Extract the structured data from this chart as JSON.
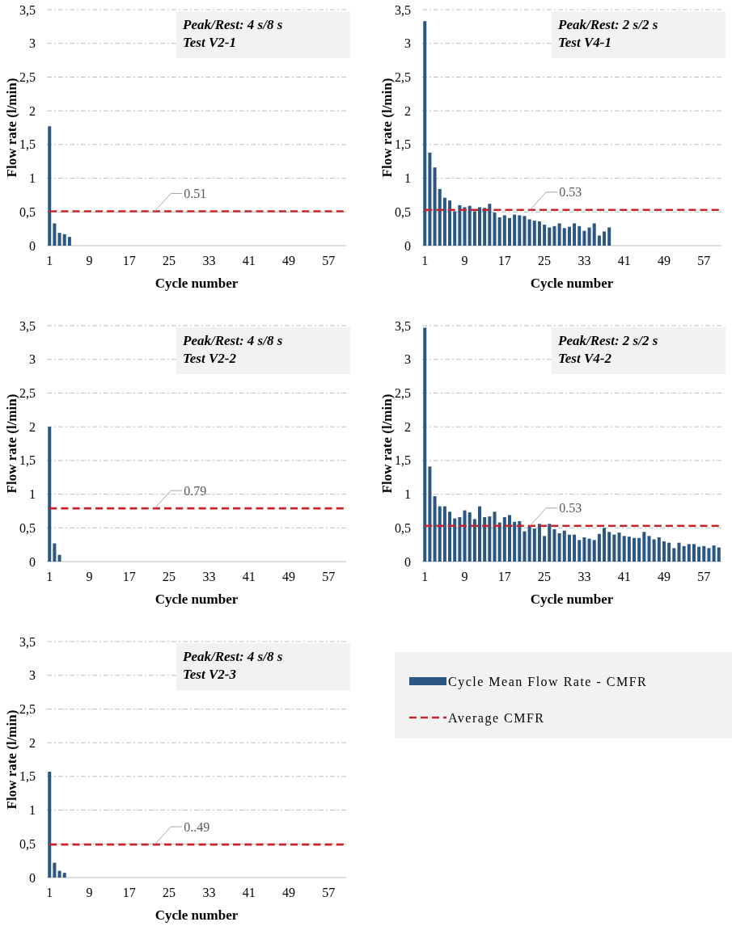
{
  "chart_data": [
    {
      "type": "bar",
      "xlabel": "Cycle number",
      "ylabel": "Flow rate (l/min)",
      "categories": [
        "1",
        null,
        null,
        null,
        null,
        null,
        null,
        null,
        "9",
        null,
        null,
        null,
        null,
        null,
        null,
        null,
        "17",
        null,
        null,
        null,
        null,
        null,
        null,
        null,
        "25",
        null,
        null,
        null,
        null,
        null,
        null,
        null,
        "33",
        null,
        null,
        null,
        null,
        null,
        null,
        null,
        "41",
        null,
        null,
        null,
        null,
        null,
        null,
        null,
        "49",
        null,
        null,
        null,
        null,
        null,
        null,
        null,
        "57",
        null,
        null,
        null
      ],
      "series": [
        {
          "type": "bar",
          "color": "#2a5783",
          "values": [
            1.77,
            0.33,
            0.19,
            0.17,
            0.13,
            null,
            null,
            null,
            null,
            null,
            null,
            null,
            null,
            null,
            null,
            null,
            null,
            null,
            null,
            null,
            null,
            null,
            null,
            null,
            null,
            null,
            null,
            null,
            null,
            null,
            null,
            null,
            null,
            null,
            null,
            null,
            null,
            null,
            null,
            null,
            null,
            null,
            null,
            null,
            null,
            null,
            null,
            null,
            null,
            null,
            null,
            null,
            null,
            null,
            null,
            null,
            null,
            null,
            null,
            null
          ]
        },
        {
          "type": "line",
          "color": "#c8242b",
          "line_style": "dashed",
          "values": [
            0.51,
            0.51,
            0.51,
            0.51,
            0.51,
            0.51,
            0.51,
            0.51,
            0.51,
            0.51,
            0.51,
            0.51,
            0.51,
            0.51,
            0.51,
            0.51,
            0.51,
            0.51,
            0.51,
            0.51,
            0.51,
            0.51,
            0.51,
            0.51,
            0.51,
            0.51,
            0.51,
            0.51,
            0.51,
            0.51,
            0.51,
            0.51,
            0.51,
            0.51,
            0.51,
            0.51,
            0.51,
            0.51,
            0.51,
            0.51,
            0.51,
            0.51,
            0.51,
            0.51,
            0.51,
            0.51,
            0.51,
            0.51,
            0.51,
            0.51,
            0.51,
            0.51,
            0.51,
            0.51,
            0.51,
            0.51,
            0.51,
            0.51,
            0.51,
            0.51
          ]
        }
      ],
      "ylim": [
        0,
        3.5
      ],
      "yticks": [
        0,
        {
          "value": 0.5,
          "label": "0,5"
        },
        1,
        {
          "value": 1.5,
          "label": "1,5"
        },
        2,
        {
          "value": 2.5,
          "label": "2,5"
        },
        3,
        {
          "value": 3.5,
          "label": "3,5"
        }
      ],
      "grid": "y",
      "legend": false,
      "annotations": [
        "Peak/Rest: 4 s/8 s",
        "Test V2-1",
        {
          "text": "0.51",
          "y": 0.51
        }
      ]
    },
    {
      "type": "bar",
      "xlabel": "Cycle number",
      "ylabel": "Flow rate (l/min)",
      "categories": [
        "1",
        null,
        null,
        null,
        null,
        null,
        null,
        null,
        "9",
        null,
        null,
        null,
        null,
        null,
        null,
        null,
        "17",
        null,
        null,
        null,
        null,
        null,
        null,
        null,
        "25",
        null,
        null,
        null,
        null,
        null,
        null,
        null,
        "33",
        null,
        null,
        null,
        null,
        null,
        null,
        null,
        "41",
        null,
        null,
        null,
        null,
        null,
        null,
        null,
        "49",
        null,
        null,
        null,
        null,
        null,
        null,
        null,
        "57",
        null,
        null,
        null
      ],
      "series": [
        {
          "type": "bar",
          "color": "#2a5783",
          "values": [
            3.33,
            1.38,
            1.16,
            0.84,
            0.71,
            0.67,
            0.51,
            0.6,
            0.57,
            0.59,
            0.51,
            0.57,
            0.56,
            0.62,
            0.49,
            0.42,
            0.45,
            0.41,
            0.46,
            0.45,
            0.44,
            0.39,
            0.37,
            0.36,
            0.31,
            0.27,
            0.29,
            0.33,
            0.26,
            0.28,
            0.33,
            0.29,
            0.22,
            0.27,
            0.33,
            0.15,
            0.21,
            0.27,
            null,
            null,
            null,
            null,
            null,
            null,
            null,
            null,
            null,
            null,
            null,
            null,
            null,
            null,
            null,
            null,
            null,
            null,
            null,
            null,
            null,
            null
          ]
        },
        {
          "type": "line",
          "color": "#c8242b",
          "line_style": "dashed",
          "values": [
            0.53,
            0.53,
            0.53,
            0.53,
            0.53,
            0.53,
            0.53,
            0.53,
            0.53,
            0.53,
            0.53,
            0.53,
            0.53,
            0.53,
            0.53,
            0.53,
            0.53,
            0.53,
            0.53,
            0.53,
            0.53,
            0.53,
            0.53,
            0.53,
            0.53,
            0.53,
            0.53,
            0.53,
            0.53,
            0.53,
            0.53,
            0.53,
            0.53,
            0.53,
            0.53,
            0.53,
            0.53,
            0.53,
            0.53,
            0.53,
            0.53,
            0.53,
            0.53,
            0.53,
            0.53,
            0.53,
            0.53,
            0.53,
            0.53,
            0.53,
            0.53,
            0.53,
            0.53,
            0.53,
            0.53,
            0.53,
            0.53,
            0.53,
            0.53,
            0.53
          ]
        }
      ],
      "ylim": [
        0,
        3.5
      ],
      "yticks": [
        0,
        {
          "value": 0.5,
          "label": "0,5"
        },
        1,
        {
          "value": 1.5,
          "label": "1,5"
        },
        2,
        {
          "value": 2.5,
          "label": "2,5"
        },
        3,
        {
          "value": 3.5,
          "label": "3,5"
        }
      ],
      "grid": "y",
      "legend": false,
      "annotations": [
        "Peak/Rest: 2 s/2 s",
        "Test V4-1",
        {
          "text": "0.53",
          "y": 0.53
        }
      ]
    },
    {
      "type": "bar",
      "xlabel": "Cycle number",
      "ylabel": "Flow rate (l/min)",
      "categories": [
        "1",
        null,
        null,
        null,
        null,
        null,
        null,
        null,
        "9",
        null,
        null,
        null,
        null,
        null,
        null,
        null,
        "17",
        null,
        null,
        null,
        null,
        null,
        null,
        null,
        "25",
        null,
        null,
        null,
        null,
        null,
        null,
        null,
        "33",
        null,
        null,
        null,
        null,
        null,
        null,
        null,
        "41",
        null,
        null,
        null,
        null,
        null,
        null,
        null,
        "49",
        null,
        null,
        null,
        null,
        null,
        null,
        null,
        "57",
        null,
        null,
        null
      ],
      "series": [
        {
          "type": "bar",
          "color": "#2a5783",
          "values": [
            2.0,
            0.27,
            0.1,
            null,
            null,
            null,
            null,
            null,
            null,
            null,
            null,
            null,
            null,
            null,
            null,
            null,
            null,
            null,
            null,
            null,
            null,
            null,
            null,
            null,
            null,
            null,
            null,
            null,
            null,
            null,
            null,
            null,
            null,
            null,
            null,
            null,
            null,
            null,
            null,
            null,
            null,
            null,
            null,
            null,
            null,
            null,
            null,
            null,
            null,
            null,
            null,
            null,
            null,
            null,
            null,
            null,
            null,
            null,
            null,
            null
          ]
        },
        {
          "type": "line",
          "color": "#c8242b",
          "line_style": "dashed",
          "values": [
            0.79,
            0.79,
            0.79,
            0.79,
            0.79,
            0.79,
            0.79,
            0.79,
            0.79,
            0.79,
            0.79,
            0.79,
            0.79,
            0.79,
            0.79,
            0.79,
            0.79,
            0.79,
            0.79,
            0.79,
            0.79,
            0.79,
            0.79,
            0.79,
            0.79,
            0.79,
            0.79,
            0.79,
            0.79,
            0.79,
            0.79,
            0.79,
            0.79,
            0.79,
            0.79,
            0.79,
            0.79,
            0.79,
            0.79,
            0.79,
            0.79,
            0.79,
            0.79,
            0.79,
            0.79,
            0.79,
            0.79,
            0.79,
            0.79,
            0.79,
            0.79,
            0.79,
            0.79,
            0.79,
            0.79,
            0.79,
            0.79,
            0.79,
            0.79,
            0.79
          ]
        }
      ],
      "ylim": [
        0,
        3.5
      ],
      "yticks": [
        0,
        {
          "value": 0.5,
          "label": "0,5"
        },
        1,
        {
          "value": 1.5,
          "label": "1,5"
        },
        2,
        {
          "value": 2.5,
          "label": "2,5"
        },
        3,
        {
          "value": 3.5,
          "label": "3,5"
        }
      ],
      "grid": "y",
      "legend": false,
      "annotations": [
        "Peak/Rest: 4 s/8 s",
        "Test V2-2",
        {
          "text": "0.79",
          "y": 0.79
        }
      ]
    },
    {
      "type": "bar",
      "xlabel": "Cycle number",
      "ylabel": "Flow rate (l/min)",
      "categories": [
        "1",
        null,
        null,
        null,
        null,
        null,
        null,
        null,
        "9",
        null,
        null,
        null,
        null,
        null,
        null,
        null,
        "17",
        null,
        null,
        null,
        null,
        null,
        null,
        null,
        "25",
        null,
        null,
        null,
        null,
        null,
        null,
        null,
        "33",
        null,
        null,
        null,
        null,
        null,
        null,
        null,
        "41",
        null,
        null,
        null,
        null,
        null,
        null,
        null,
        "49",
        null,
        null,
        null,
        null,
        null,
        null,
        null,
        "57",
        null,
        null,
        null
      ],
      "series": [
        {
          "type": "bar",
          "color": "#2a5783",
          "values": [
            3.47,
            1.41,
            0.97,
            0.82,
            0.82,
            0.74,
            0.64,
            0.66,
            0.76,
            0.73,
            0.63,
            0.82,
            0.66,
            0.67,
            0.74,
            0.58,
            0.66,
            0.69,
            0.59,
            0.6,
            0.45,
            0.52,
            0.49,
            0.56,
            0.38,
            0.56,
            0.48,
            0.42,
            0.46,
            0.4,
            0.4,
            0.32,
            0.36,
            0.34,
            0.32,
            0.41,
            0.5,
            0.44,
            0.4,
            0.43,
            0.38,
            0.37,
            0.35,
            0.35,
            0.44,
            0.38,
            0.33,
            0.36,
            0.3,
            0.28,
            0.2,
            0.28,
            0.23,
            0.26,
            0.26,
            0.22,
            0.23,
            0.2,
            0.24,
            0.21
          ]
        },
        {
          "type": "line",
          "color": "#c8242b",
          "line_style": "dashed",
          "values": [
            0.53,
            0.53,
            0.53,
            0.53,
            0.53,
            0.53,
            0.53,
            0.53,
            0.53,
            0.53,
            0.53,
            0.53,
            0.53,
            0.53,
            0.53,
            0.53,
            0.53,
            0.53,
            0.53,
            0.53,
            0.53,
            0.53,
            0.53,
            0.53,
            0.53,
            0.53,
            0.53,
            0.53,
            0.53,
            0.53,
            0.53,
            0.53,
            0.53,
            0.53,
            0.53,
            0.53,
            0.53,
            0.53,
            0.53,
            0.53,
            0.53,
            0.53,
            0.53,
            0.53,
            0.53,
            0.53,
            0.53,
            0.53,
            0.53,
            0.53,
            0.53,
            0.53,
            0.53,
            0.53,
            0.53,
            0.53,
            0.53,
            0.53,
            0.53,
            0.53
          ]
        }
      ],
      "ylim": [
        0,
        3.5
      ],
      "yticks": [
        0,
        {
          "value": 0.5,
          "label": "0,5"
        },
        1,
        {
          "value": 1.5,
          "label": "1,5"
        },
        2,
        {
          "value": 2.5,
          "label": "2,5"
        },
        3,
        {
          "value": 3.5,
          "label": "3,5"
        }
      ],
      "grid": "y",
      "legend": false,
      "annotations": [
        "Peak/Rest: 2 s/2 s",
        "Test V4-2",
        {
          "text": "0.53",
          "y": 0.53
        }
      ]
    },
    {
      "type": "bar",
      "xlabel": "Cycle number",
      "ylabel": "Flow rate (l/min)",
      "categories": [
        "1",
        null,
        null,
        null,
        null,
        null,
        null,
        null,
        "9",
        null,
        null,
        null,
        null,
        null,
        null,
        null,
        "17",
        null,
        null,
        null,
        null,
        null,
        null,
        null,
        "25",
        null,
        null,
        null,
        null,
        null,
        null,
        null,
        "33",
        null,
        null,
        null,
        null,
        null,
        null,
        null,
        "41",
        null,
        null,
        null,
        null,
        null,
        null,
        null,
        "49",
        null,
        null,
        null,
        null,
        null,
        null,
        null,
        "57",
        null,
        null,
        null
      ],
      "series": [
        {
          "type": "bar",
          "name": "Cycle Mean Flow Rate - CMFR",
          "color": "#2a5783",
          "values": [
            1.57,
            0.22,
            0.1,
            0.07,
            null,
            null,
            null,
            null,
            null,
            null,
            null,
            null,
            null,
            null,
            null,
            null,
            null,
            null,
            null,
            null,
            null,
            null,
            null,
            null,
            null,
            null,
            null,
            null,
            null,
            null,
            null,
            null,
            null,
            null,
            null,
            null,
            null,
            null,
            null,
            null,
            null,
            null,
            null,
            null,
            null,
            null,
            null,
            null,
            null,
            null,
            null,
            null,
            null,
            null,
            null,
            null,
            null,
            null,
            null,
            null
          ]
        },
        {
          "type": "line",
          "name": "Average CMFR",
          "color": "#c8242b",
          "line_style": "dashed",
          "values": [
            0.49,
            0.49,
            0.49,
            0.49,
            0.49,
            0.49,
            0.49,
            0.49,
            0.49,
            0.49,
            0.49,
            0.49,
            0.49,
            0.49,
            0.49,
            0.49,
            0.49,
            0.49,
            0.49,
            0.49,
            0.49,
            0.49,
            0.49,
            0.49,
            0.49,
            0.49,
            0.49,
            0.49,
            0.49,
            0.49,
            0.49,
            0.49,
            0.49,
            0.49,
            0.49,
            0.49,
            0.49,
            0.49,
            0.49,
            0.49,
            0.49,
            0.49,
            0.49,
            0.49,
            0.49,
            0.49,
            0.49,
            0.49,
            0.49,
            0.49,
            0.49,
            0.49,
            0.49,
            0.49,
            0.49,
            0.49,
            0.49,
            0.49,
            0.49,
            0.49
          ]
        }
      ],
      "ylim": [
        0,
        3.5
      ],
      "yticks": [
        0,
        {
          "value": 0.5,
          "label": "0,5"
        },
        1,
        {
          "value": 1.5,
          "label": "1,5"
        },
        2,
        {
          "value": 2.5,
          "label": "2,5"
        },
        3,
        {
          "value": 3.5,
          "label": "3,5"
        }
      ],
      "grid": "y",
      "legend": "right",
      "annotations": [
        "Peak/Rest: 4 s/8 s",
        "Test V2-3",
        {
          "text": "0..49",
          "y": 0.49
        }
      ]
    }
  ]
}
